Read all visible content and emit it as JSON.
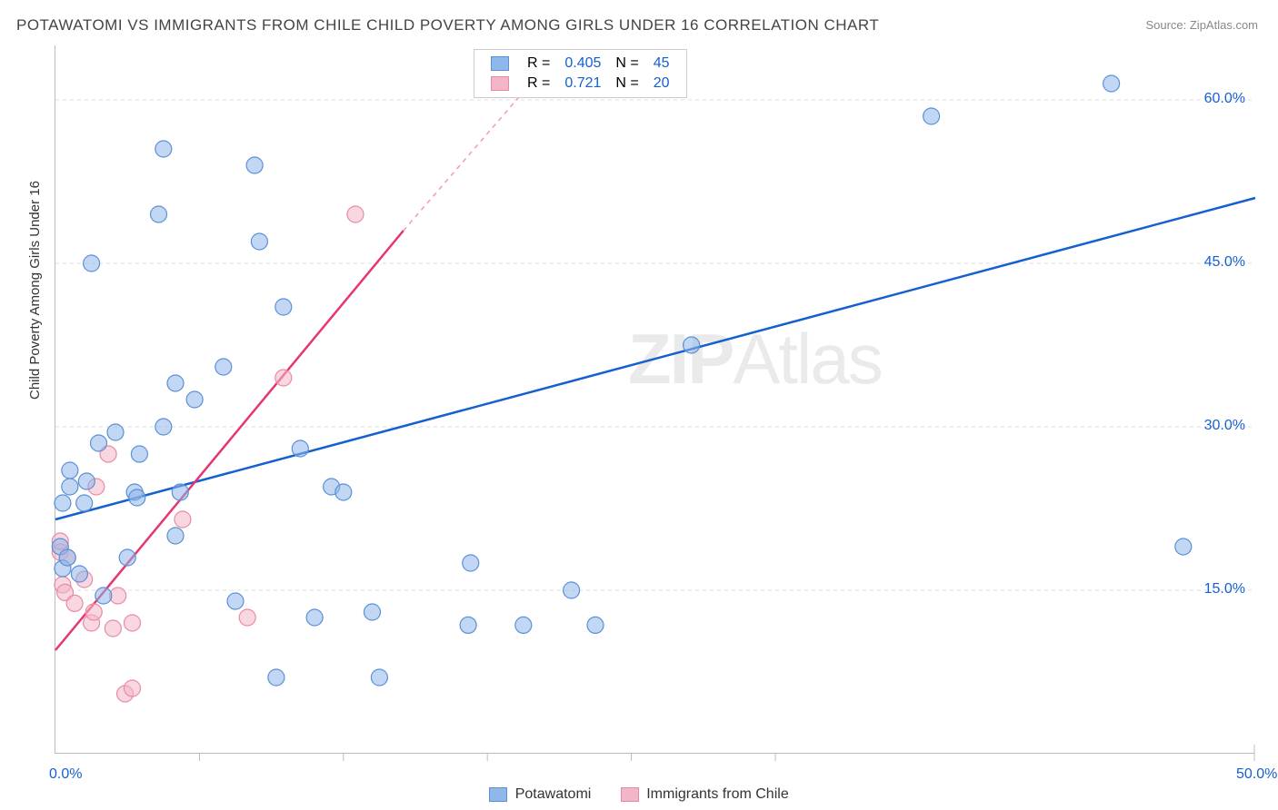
{
  "title": "POTAWATOMI VS IMMIGRANTS FROM CHILE CHILD POVERTY AMONG GIRLS UNDER 16 CORRELATION CHART",
  "source": "Source: ZipAtlas.com",
  "ylabel": "Child Poverty Among Girls Under 16",
  "watermark": {
    "left": "ZIP",
    "right": "Atlas"
  },
  "chart": {
    "type": "scatter",
    "background_color": "#ffffff",
    "grid_color": "#dddddd",
    "axis_color": "#bbbbbb",
    "xlim": [
      0,
      50
    ],
    "ylim": [
      0,
      65
    ],
    "xticks": [
      0,
      6,
      12,
      18,
      24,
      30,
      50
    ],
    "xtick_labels": {
      "0": "0.0%",
      "50": "50.0%"
    },
    "yticks": [
      15,
      30,
      45,
      60
    ],
    "ytick_labels": {
      "15": "15.0%",
      "30": "30.0%",
      "45": "45.0%",
      "60": "60.0%"
    },
    "tick_label_color": "#1560d0",
    "tick_label_fontsize": 16,
    "title_fontsize": 17,
    "marker_radius": 9,
    "marker_opacity": 0.55,
    "trend_line_width": 2.5
  },
  "series": {
    "potawatomi": {
      "label": "Potawatomi",
      "color_fill": "#8eb7ea",
      "color_stroke": "#5b8fd6",
      "trend_color": "#1560d0",
      "R": "0.405",
      "N": "45",
      "trend": {
        "x1": 0,
        "y1": 21.5,
        "x2": 50,
        "y2": 51
      },
      "points": [
        [
          0.2,
          19
        ],
        [
          0.3,
          23
        ],
        [
          0.3,
          17
        ],
        [
          0.5,
          18
        ],
        [
          0.6,
          24.5
        ],
        [
          0.6,
          26
        ],
        [
          1.0,
          16.5
        ],
        [
          1.2,
          23
        ],
        [
          1.3,
          25
        ],
        [
          1.5,
          45
        ],
        [
          1.8,
          28.5
        ],
        [
          2.0,
          14.5
        ],
        [
          2.5,
          29.5
        ],
        [
          3.0,
          18
        ],
        [
          3.3,
          24
        ],
        [
          3.4,
          23.5
        ],
        [
          3.5,
          27.5
        ],
        [
          4.3,
          49.5
        ],
        [
          4.5,
          55.5
        ],
        [
          4.5,
          30
        ],
        [
          5.0,
          34
        ],
        [
          5.0,
          20
        ],
        [
          5.2,
          24
        ],
        [
          5.8,
          32.5
        ],
        [
          7.0,
          35.5
        ],
        [
          7.5,
          14
        ],
        [
          8.3,
          54
        ],
        [
          8.5,
          47
        ],
        [
          9.2,
          7
        ],
        [
          9.5,
          41
        ],
        [
          10.2,
          28
        ],
        [
          10.8,
          12.5
        ],
        [
          11.5,
          24.5
        ],
        [
          12.0,
          24
        ],
        [
          13.2,
          13
        ],
        [
          13.5,
          7
        ],
        [
          17.2,
          11.8
        ],
        [
          17.3,
          17.5
        ],
        [
          19.5,
          11.8
        ],
        [
          21.5,
          15
        ],
        [
          22.5,
          11.8
        ],
        [
          26.5,
          37.5
        ],
        [
          36.5,
          58.5
        ],
        [
          44,
          61.5
        ],
        [
          47,
          19
        ]
      ]
    },
    "chile": {
      "label": "Immigrants from Chile",
      "color_fill": "#f3b6c6",
      "color_stroke": "#e88aa4",
      "trend_color": "#e73570",
      "R": "0.721",
      "N": "20",
      "trend_solid": {
        "x1": 0,
        "y1": 9.5,
        "x2": 14.5,
        "y2": 48
      },
      "trend_dashed": {
        "x1": 14.5,
        "y1": 48,
        "x2": 20,
        "y2": 62
      },
      "points": [
        [
          0.2,
          18.5
        ],
        [
          0.2,
          19.5
        ],
        [
          0.3,
          15.5
        ],
        [
          0.4,
          14.8
        ],
        [
          0.5,
          18
        ],
        [
          0.8,
          13.8
        ],
        [
          1.2,
          16
        ],
        [
          1.5,
          12
        ],
        [
          1.6,
          13
        ],
        [
          1.7,
          24.5
        ],
        [
          2.2,
          27.5
        ],
        [
          2.4,
          11.5
        ],
        [
          2.6,
          14.5
        ],
        [
          2.9,
          5.5
        ],
        [
          3.2,
          6
        ],
        [
          3.2,
          12
        ],
        [
          5.3,
          21.5
        ],
        [
          8.0,
          12.5
        ],
        [
          9.5,
          34.5
        ],
        [
          12.5,
          49.5
        ]
      ]
    }
  },
  "legend_top": {
    "R_label": "R =",
    "N_label": "N ="
  },
  "legend_bottom": {
    "items": [
      "potawatomi",
      "chile"
    ]
  }
}
